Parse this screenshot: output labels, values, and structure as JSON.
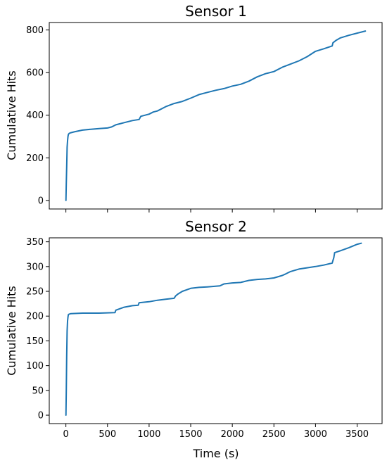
{
  "chart_data": [
    {
      "type": "line",
      "title": "Sensor 1",
      "xlabel": "",
      "ylabel": "Cumulative Hits",
      "xlim": [
        -200,
        3800
      ],
      "ylim": [
        -40,
        835
      ],
      "xticks": [
        0,
        500,
        1000,
        1500,
        2000,
        2500,
        3000,
        3500
      ],
      "xtick_labels_visible": false,
      "yticks": [
        0,
        200,
        400,
        600,
        800
      ],
      "grid": false,
      "color": "#1f77b4",
      "series": [
        {
          "x": [
            0,
            5,
            10,
            15,
            20,
            25,
            30,
            40,
            60,
            100,
            200,
            300,
            400,
            500,
            550,
            600,
            650,
            700,
            800,
            880,
            900,
            1000,
            1050,
            1100,
            1200,
            1300,
            1400,
            1500,
            1600,
            1700,
            1800,
            1900,
            2000,
            2100,
            2200,
            2300,
            2400,
            2500,
            2600,
            2700,
            2800,
            2900,
            3000,
            3100,
            3200,
            3210,
            3250,
            3300,
            3400,
            3500,
            3550,
            3600
          ],
          "y": [
            0,
            80,
            160,
            250,
            280,
            300,
            310,
            315,
            318,
            322,
            330,
            334,
            337,
            340,
            345,
            355,
            360,
            365,
            375,
            380,
            395,
            405,
            415,
            420,
            440,
            455,
            465,
            480,
            497,
            507,
            517,
            525,
            537,
            545,
            560,
            580,
            595,
            605,
            625,
            640,
            655,
            675,
            700,
            712,
            725,
            740,
            752,
            763,
            775,
            785,
            790,
            795
          ]
        }
      ]
    },
    {
      "type": "line",
      "title": "Sensor 2",
      "xlabel": "Time (s)",
      "ylabel": "Cumulative Hits",
      "xlim": [
        -200,
        3800
      ],
      "ylim": [
        -17,
        358
      ],
      "xticks": [
        0,
        500,
        1000,
        1500,
        2000,
        2500,
        3000,
        3500
      ],
      "xtick_labels_visible": true,
      "yticks": [
        0,
        50,
        100,
        150,
        200,
        250,
        300,
        350
      ],
      "grid": false,
      "color": "#1f77b4",
      "series": [
        {
          "x": [
            0,
            5,
            10,
            15,
            20,
            25,
            30,
            40,
            60,
            200,
            400,
            590,
            600,
            700,
            800,
            870,
            880,
            1000,
            1100,
            1200,
            1300,
            1320,
            1350,
            1400,
            1450,
            1500,
            1600,
            1700,
            1850,
            1900,
            2000,
            2100,
            2200,
            2300,
            2400,
            2500,
            2600,
            2640,
            2700,
            2800,
            3000,
            3100,
            3200,
            3220,
            3230,
            3300,
            3400,
            3500,
            3550
          ],
          "y": [
            0,
            50,
            120,
            170,
            190,
            198,
            203,
            204,
            205,
            206,
            206,
            207,
            212,
            218,
            221,
            222,
            227,
            229,
            232,
            234,
            236,
            241,
            245,
            250,
            253,
            256,
            258,
            259,
            261,
            265,
            267,
            268,
            272,
            274,
            275,
            277,
            282,
            285,
            290,
            295,
            300,
            303,
            307,
            318,
            328,
            332,
            338,
            345,
            347
          ]
        }
      ]
    }
  ]
}
